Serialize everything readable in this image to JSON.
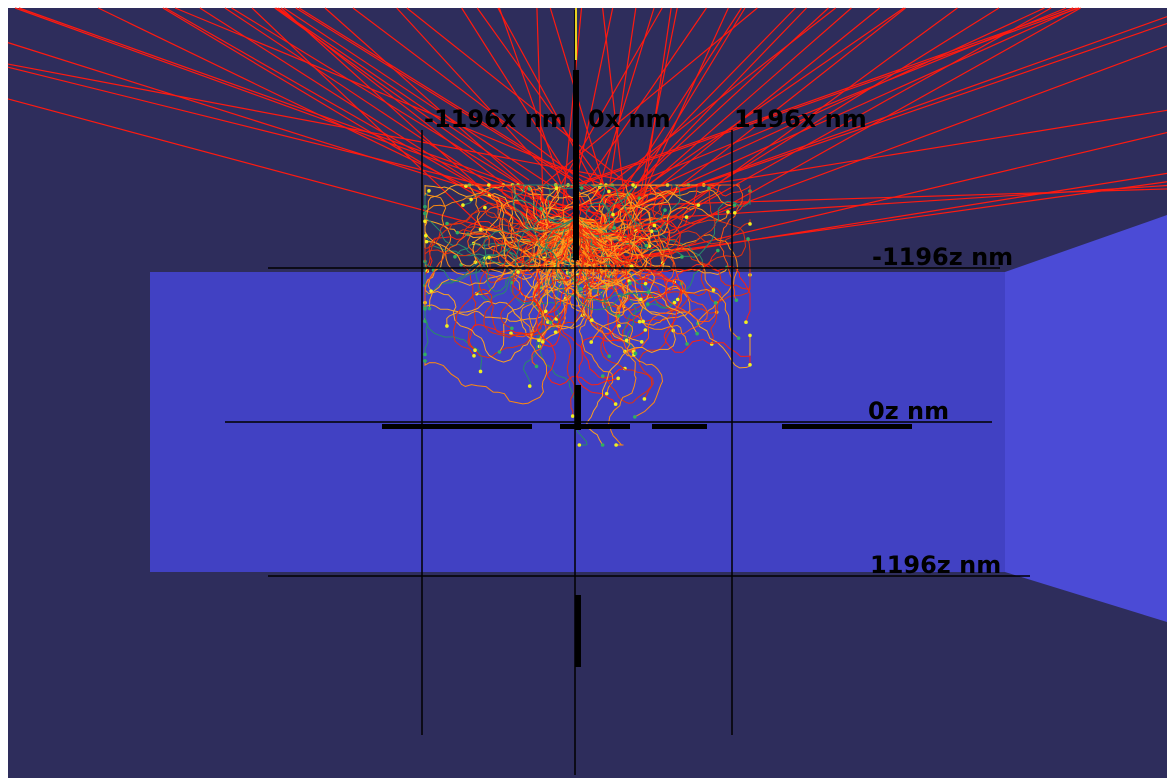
{
  "axis_labels": {
    "x_min": "-1196x nm",
    "x_mid": "0x nm",
    "x_max": "1196x nm",
    "z_min": "-1196z nm",
    "z_mid": "0z nm",
    "z_max": "1196z nm"
  }
}
